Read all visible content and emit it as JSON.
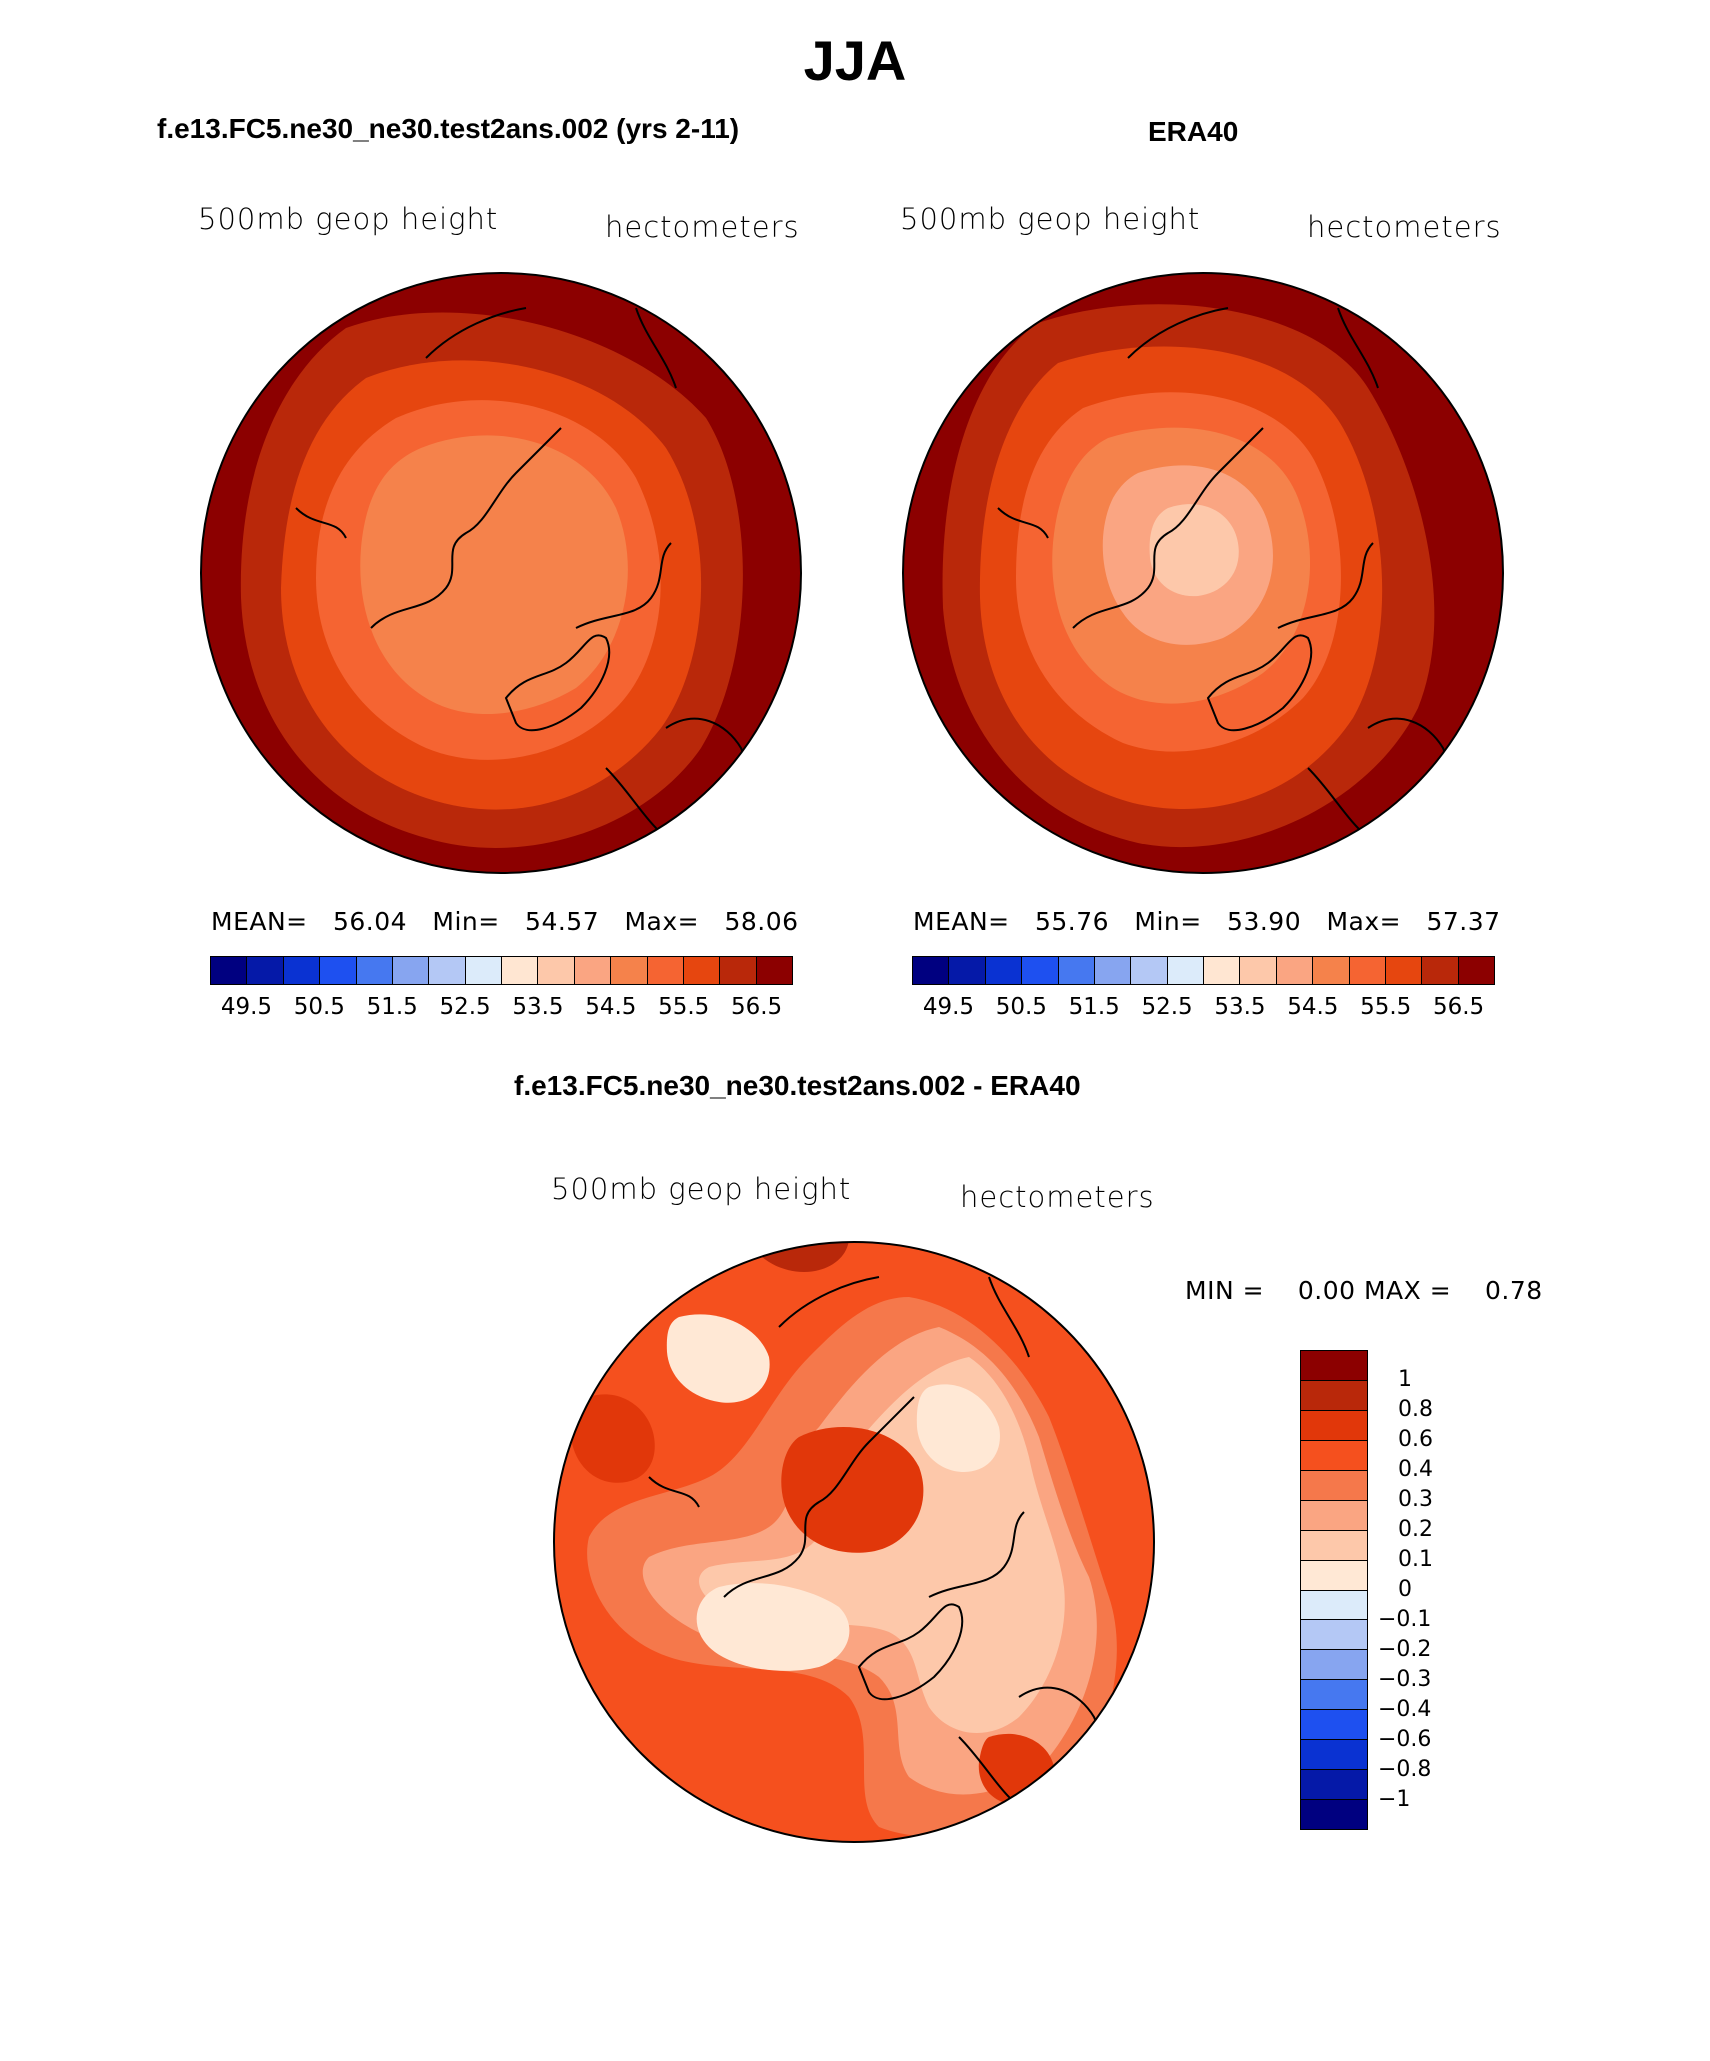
{
  "title": "JJA",
  "panel_left": {
    "title": "f.e13.FC5.ne30_ne30.test2ans.002 (yrs 2-11)"
  },
  "panel_right": {
    "title": "ERA40"
  },
  "panel_diff": {
    "title": "f.e13.FC5.ne30_ne30.test2ans.002 - ERA40"
  },
  "chart_data": [
    {
      "type": "heatmap",
      "projection": "north polar stereographic",
      "title": "f.e13.FC5.ne30_ne30.test2ans.002 (yrs 2-11)",
      "variable_label": "500mb geop height",
      "units_label": "hectometers",
      "stats": {
        "mean_label": "MEAN=",
        "mean": "56.04",
        "min_label": "Min=",
        "min": "54.57",
        "max_label": "Max=",
        "max": "58.06"
      },
      "colorbar_ticks": [
        "49.5",
        "50.5",
        "51.5",
        "52.5",
        "53.5",
        "54.5",
        "55.5",
        "56.5"
      ]
    },
    {
      "type": "heatmap",
      "projection": "north polar stereographic",
      "title": "ERA40",
      "variable_label": "500mb geop height",
      "units_label": "hectometers",
      "stats": {
        "mean_label": "MEAN=",
        "mean": "55.76",
        "min_label": "Min=",
        "min": "53.90",
        "max_label": "Max=",
        "max": "57.37"
      },
      "colorbar_ticks": [
        "49.5",
        "50.5",
        "51.5",
        "52.5",
        "53.5",
        "54.5",
        "55.5",
        "56.5"
      ]
    },
    {
      "type": "heatmap",
      "projection": "north polar stereographic",
      "title": "f.e13.FC5.ne30_ne30.test2ans.002 - ERA40",
      "variable_label": "500mb geop height",
      "units_label": "hectometers",
      "stats": {
        "min_label": "MIN =",
        "min": "0.00",
        "max_label": "MAX =",
        "max": "0.78"
      },
      "colorbar_ticks": [
        "1",
        "0.8",
        "0.6",
        "0.4",
        "0.3",
        "0.2",
        "0.1",
        "0",
        "−0.1",
        "−0.2",
        "−0.3",
        "−0.4",
        "−0.6",
        "−0.8",
        "−1"
      ]
    }
  ],
  "palette": {
    "abs_colors": [
      "#000080",
      "#0519A8",
      "#0A32D2",
      "#1E50F0",
      "#4678F0",
      "#87A5F0",
      "#B4C8F5",
      "#DCEBFA",
      "#FFE6D2",
      "#FDC8AA",
      "#FAA582",
      "#F5824B",
      "#F56432",
      "#E6460F",
      "#B9280A",
      "#8C0000"
    ],
    "diff_colors": [
      "#8C0000",
      "#B9280A",
      "#E1370A",
      "#F5501E",
      "#F5784B",
      "#FAA582",
      "#FDC8AA",
      "#FFE8D5",
      "#DCEBFA",
      "#B4C8F5",
      "#87A5F0",
      "#4678F0",
      "#1E50F0",
      "#0A32D2",
      "#0519A8",
      "#000080"
    ]
  }
}
